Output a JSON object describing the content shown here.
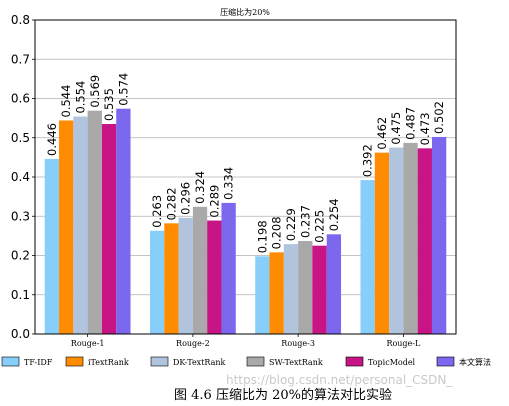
{
  "chart_data": {
    "type": "bar",
    "title": "压缩比为20%",
    "categories": [
      "Rouge-1",
      "Rouge-2",
      "Rouge-3",
      "Rouge-L"
    ],
    "ylim": [
      0,
      0.8
    ],
    "yticks": [
      "0.0",
      "0.1",
      "0.2",
      "0.3",
      "0.4",
      "0.5",
      "0.6",
      "0.7",
      "0.8"
    ],
    "grid": "y",
    "legend_position": "bottom",
    "series": [
      {
        "name": "TF-IDF",
        "color": "#87cefa",
        "values": [
          0.446,
          0.263,
          0.198,
          0.392
        ]
      },
      {
        "name": "iTextRank",
        "color": "#ff8c00",
        "values": [
          0.544,
          0.282,
          0.208,
          0.462
        ]
      },
      {
        "name": "DK-TextRank",
        "color": "#b0c4de",
        "values": [
          0.554,
          0.296,
          0.229,
          0.475
        ]
      },
      {
        "name": "SW-TextRank",
        "color": "#a9a9a9",
        "values": [
          0.569,
          0.324,
          0.237,
          0.487
        ]
      },
      {
        "name": "TopicModel",
        "color": "#c71585",
        "values": [
          0.535,
          0.289,
          0.225,
          0.473
        ]
      },
      {
        "name": "本文算法",
        "color": "#7b68ee",
        "values": [
          0.574,
          0.334,
          0.254,
          0.502
        ]
      }
    ]
  },
  "caption": "图 4.6  压缩比为 20%的算法对比实验",
  "watermark": "https://blog.csdn.net/personal_CSDN_"
}
